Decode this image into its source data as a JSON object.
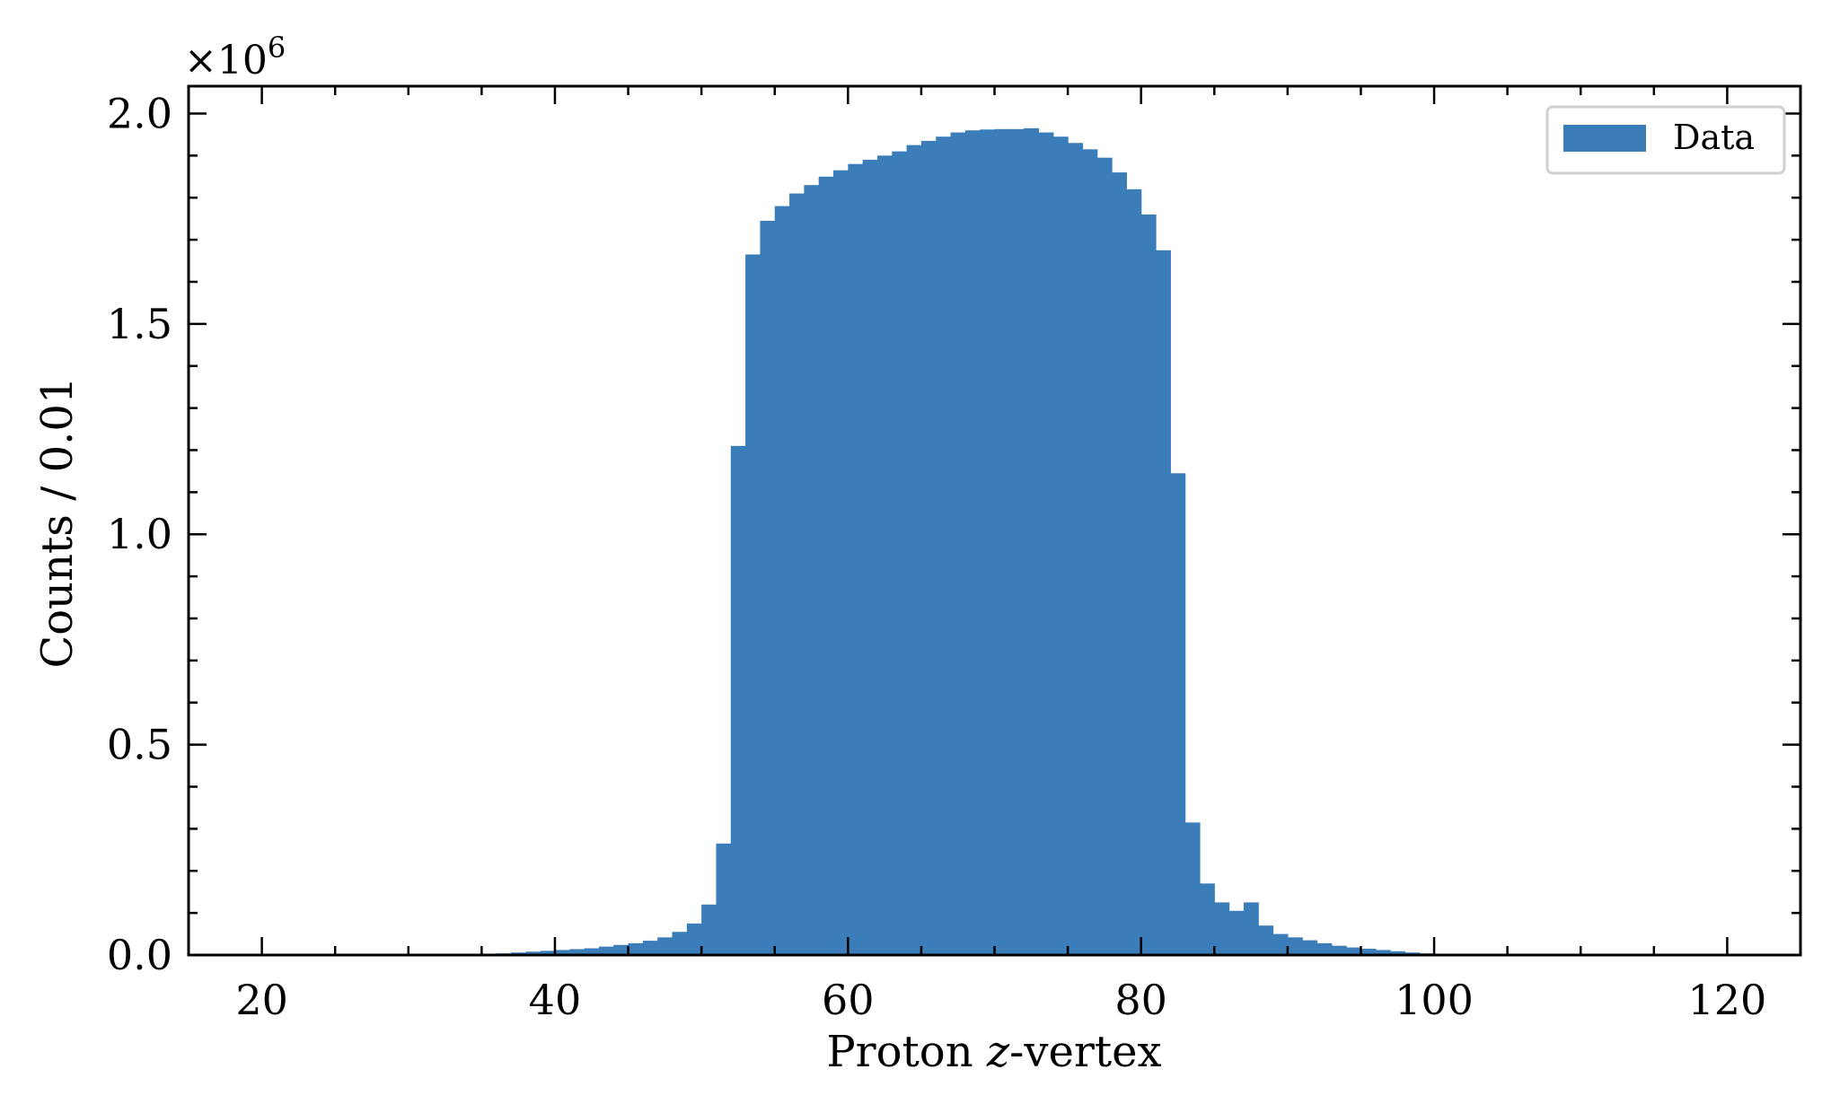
{
  "chart_data": {
    "type": "bar",
    "subtype": "histogram",
    "title": "",
    "xlabel": "Proton",
    "xlabel_variable": "z",
    "xlabel_suffix": "-vertex",
    "ylabel": "Counts / 0.01",
    "y_multiplier_base": "×10",
    "y_multiplier_exponent": "6",
    "xlim": [
      15,
      125
    ],
    "ylim": [
      0,
      2.065
    ],
    "x_ticks": [
      20,
      40,
      60,
      80,
      100,
      120
    ],
    "y_ticks": [
      0.0,
      0.5,
      1.0,
      1.5,
      2.0
    ],
    "x_tick_labels": [
      "20",
      "40",
      "60",
      "80",
      "100",
      "120"
    ],
    "y_tick_labels": [
      "0.0",
      "0.5",
      "1.0",
      "1.5",
      "2.0"
    ],
    "bin_start": 15,
    "bin_width": 1,
    "series": [
      {
        "name": "Data",
        "color": "#3a7db8",
        "values": [
          0,
          0,
          0,
          0,
          0,
          0,
          0,
          0,
          0,
          0,
          0,
          0,
          0,
          0,
          0,
          0,
          0,
          0,
          0.001,
          0.002,
          0.003,
          0.004,
          0.006,
          0.008,
          0.01,
          0.012,
          0.014,
          0.016,
          0.02,
          0.024,
          0.028,
          0.034,
          0.042,
          0.055,
          0.075,
          0.12,
          0.265,
          1.21,
          1.665,
          1.745,
          1.78,
          1.81,
          1.83,
          1.85,
          1.865,
          1.88,
          1.89,
          1.9,
          1.91,
          1.925,
          1.935,
          1.945,
          1.955,
          1.96,
          1.962,
          1.963,
          1.963,
          1.965,
          1.955,
          1.945,
          1.93,
          1.915,
          1.895,
          1.86,
          1.82,
          1.76,
          1.675,
          1.145,
          0.315,
          0.17,
          0.125,
          0.105,
          0.125,
          0.07,
          0.05,
          0.042,
          0.035,
          0.028,
          0.022,
          0.018,
          0.015,
          0.012,
          0.009,
          0.006,
          0.004,
          0.003,
          0.002,
          0.001,
          0,
          0,
          0,
          0,
          0,
          0,
          0,
          0,
          0,
          0,
          0,
          0,
          0,
          0,
          0,
          0,
          0,
          0,
          0,
          0,
          0,
          0,
          0,
          0
        ]
      }
    ],
    "legend": {
      "position": "top-right",
      "entries": [
        "Data"
      ]
    },
    "grid": false
  }
}
